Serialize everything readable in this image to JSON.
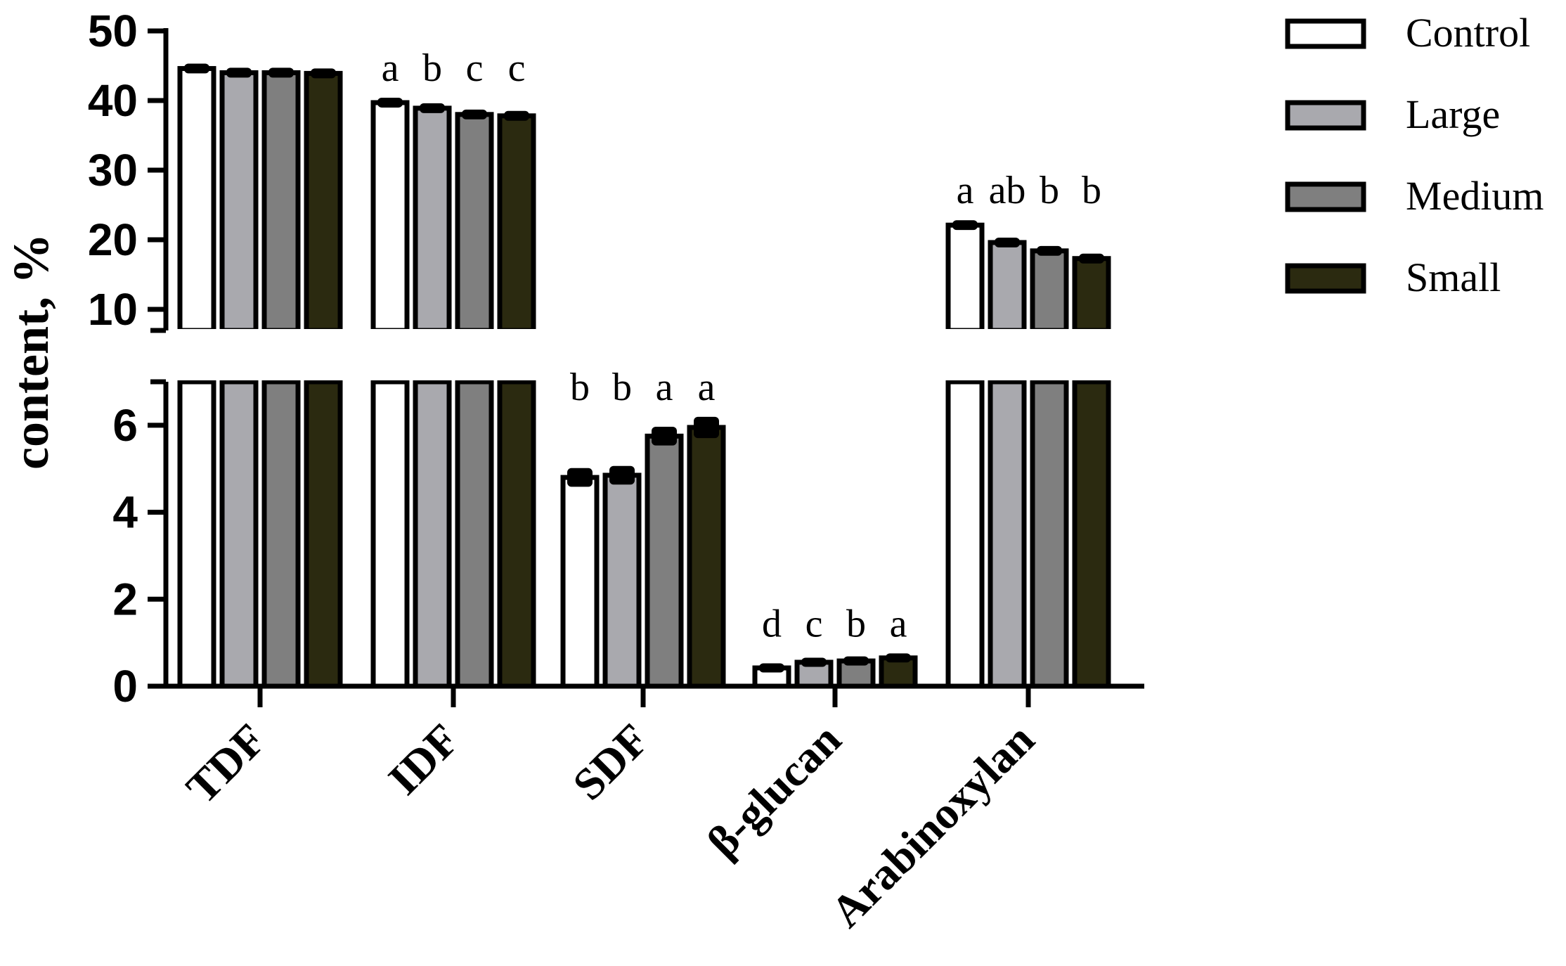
{
  "chart_data": {
    "type": "bar",
    "ylabel": "content, %",
    "y_axis_break": true,
    "y_lower_range": [
      0,
      7
    ],
    "y_upper_range": [
      7,
      50
    ],
    "y_lower_ticks": [
      "0",
      "2",
      "4",
      "6"
    ],
    "y_upper_ticks": [
      "10",
      "20",
      "30",
      "40",
      "50"
    ],
    "y_lower_tick_values": [
      0,
      2,
      4,
      6
    ],
    "y_upper_tick_values": [
      10,
      20,
      30,
      40,
      50
    ],
    "categories": [
      "TDF",
      "IDF",
      "SDF",
      "β-glucan",
      "Arabinoxylan"
    ],
    "series": [
      {
        "name": "Control",
        "color": "#ffffff",
        "values": [
          44.6,
          39.7,
          4.8,
          0.42,
          22.1
        ],
        "errors": [
          0.3,
          0.3,
          0.15,
          0.04,
          0.3
        ]
      },
      {
        "name": "Large",
        "color": "#a9a9ae",
        "values": [
          44.0,
          38.9,
          4.85,
          0.55,
          19.6
        ],
        "errors": [
          0.3,
          0.3,
          0.15,
          0.04,
          0.3
        ]
      },
      {
        "name": "Medium",
        "color": "#7f7f7f",
        "values": [
          44.0,
          38.0,
          5.75,
          0.58,
          18.4
        ],
        "errors": [
          0.3,
          0.3,
          0.15,
          0.04,
          0.3
        ]
      },
      {
        "name": "Small",
        "color": "#2b2a10",
        "values": [
          43.9,
          37.8,
          5.95,
          0.65,
          17.3
        ],
        "errors": [
          0.3,
          0.3,
          0.18,
          0.04,
          0.3
        ]
      }
    ],
    "significance": [
      {
        "category": "IDF",
        "labels": [
          "a",
          "b",
          "c",
          "c"
        ]
      },
      {
        "category": "SDF",
        "labels": [
          "b",
          "b",
          "a",
          "a"
        ]
      },
      {
        "category": "β-glucan",
        "labels": [
          "d",
          "c",
          "b",
          "a"
        ]
      },
      {
        "category": "Arabinoxylan",
        "labels": [
          "a",
          "ab",
          "b",
          "b"
        ]
      }
    ],
    "legend_position": "top-right"
  }
}
